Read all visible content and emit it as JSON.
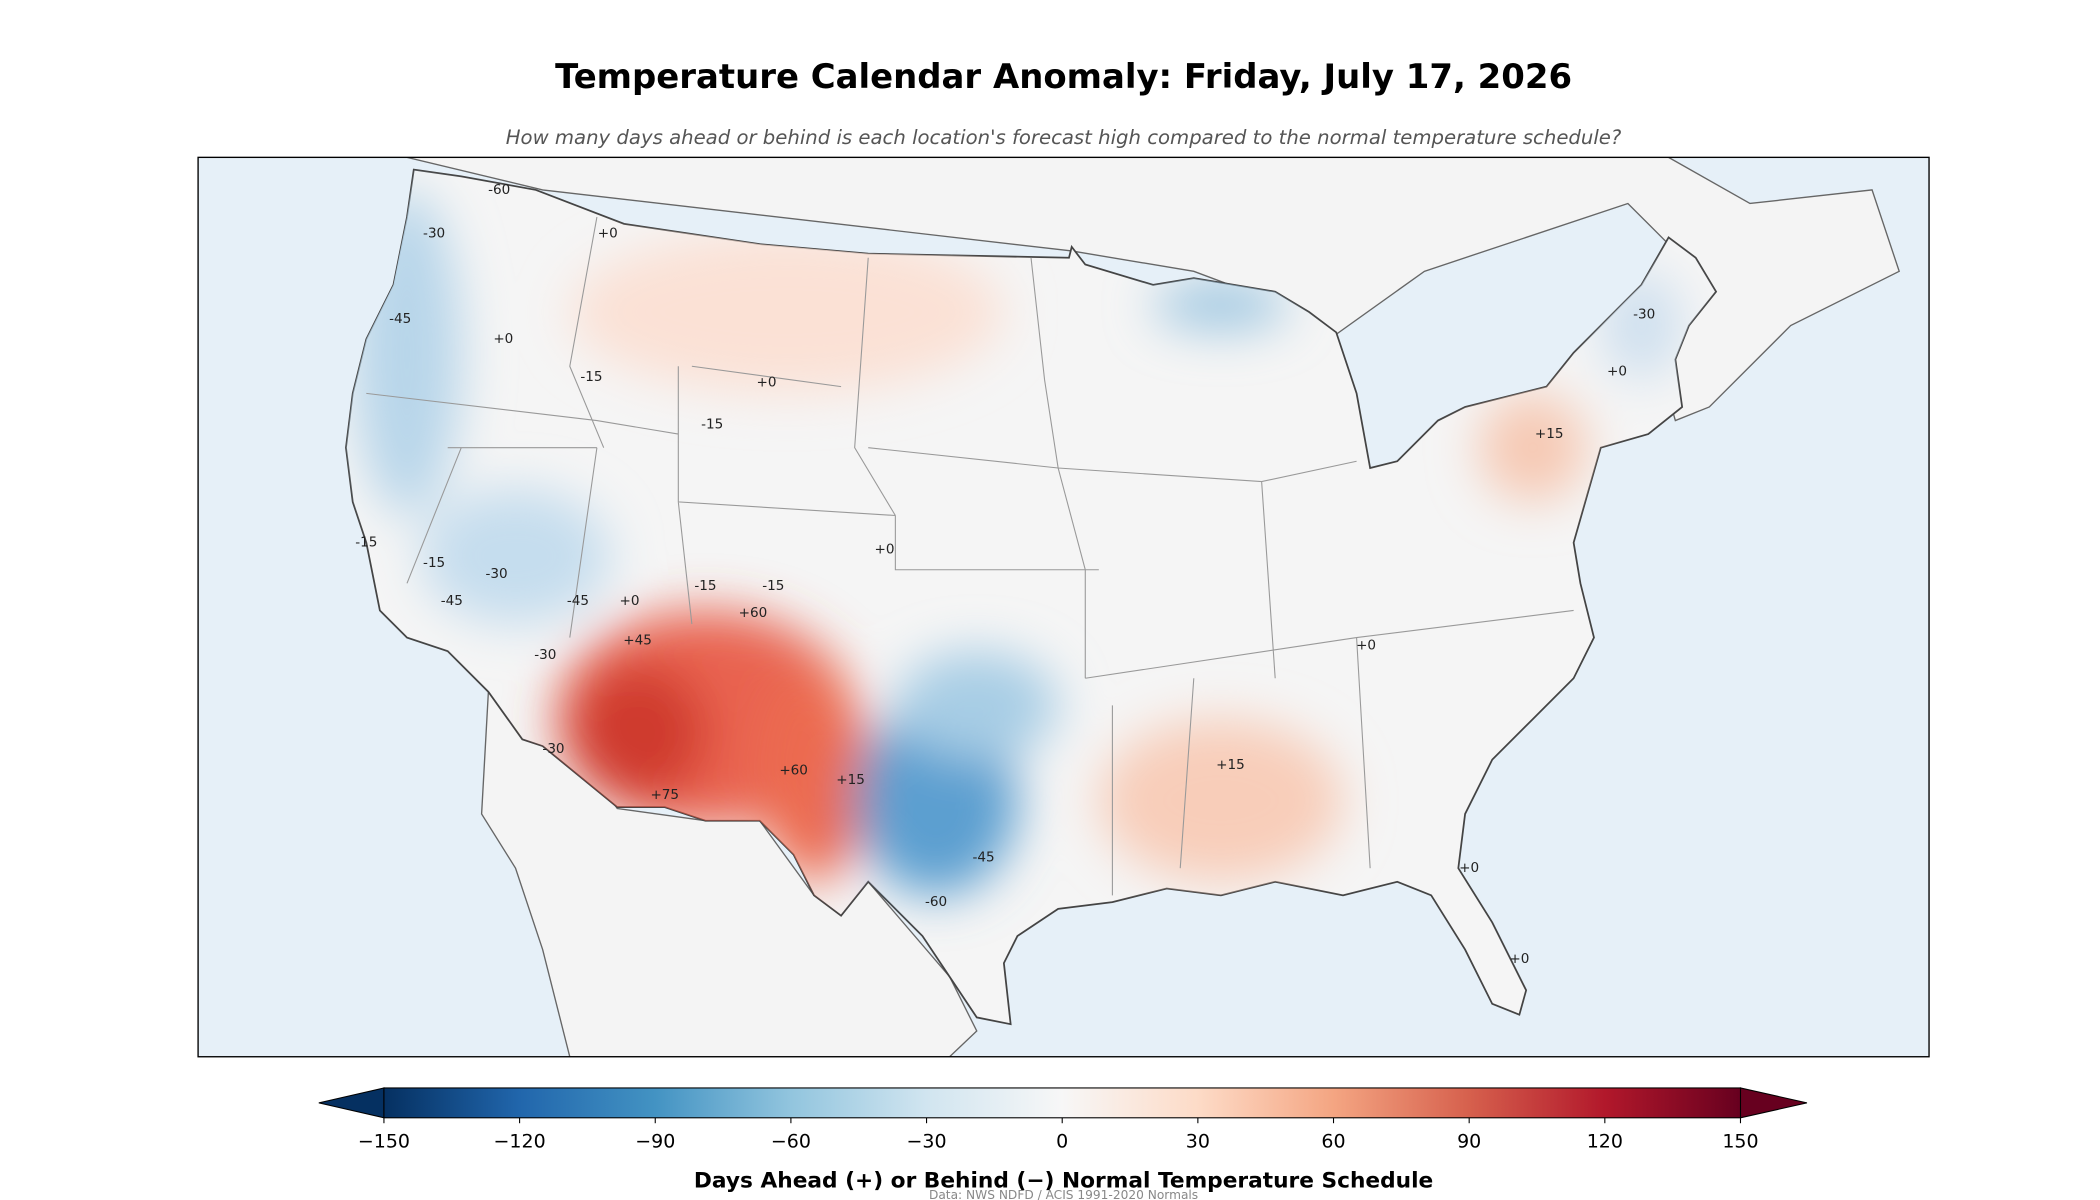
{
  "title": "Temperature Calendar Anomaly: Friday, July 17, 2026",
  "subtitle": "How many days ahead or behind is each location's forecast high compared to the normal temperature schedule?",
  "contour_labels": [
    "-60",
    "-30",
    "+0",
    "-15",
    "-45",
    "+0",
    "-15",
    "+0",
    "-15",
    "-15",
    "-15",
    "-30",
    "-45",
    "-45",
    "+0",
    "-15",
    "-30",
    "+60",
    "+45",
    "-30",
    "+75",
    "+60",
    "+15",
    "-45",
    "-60",
    "+0",
    "+0",
    "+15",
    "-30",
    "+0",
    "+15",
    "+0",
    "+0"
  ],
  "colorbar": {
    "lim": [
      -150,
      150
    ],
    "colors": [
      "#053061",
      "#2166ac",
      "#4393c3",
      "#92c5de",
      "#d1e5f0",
      "#f7f7f7",
      "#fddbc7",
      "#f4a582",
      "#d6604d",
      "#b2182b",
      "#67001f"
    ],
    "ticks": [
      {
        "value": -150,
        "label": "−150"
      },
      {
        "value": -120,
        "label": "−120"
      },
      {
        "value": -90,
        "label": "−90"
      },
      {
        "value": -60,
        "label": "−60"
      },
      {
        "value": -30,
        "label": "−30"
      },
      0,
      30,
      60,
      90,
      120,
      150
    ],
    "label": "Days Ahead (+) or Behind (−) Normal Temperature Schedule"
  },
  "source": "Data: NWS NDFD / ACIS 1991-2020 Normals"
}
